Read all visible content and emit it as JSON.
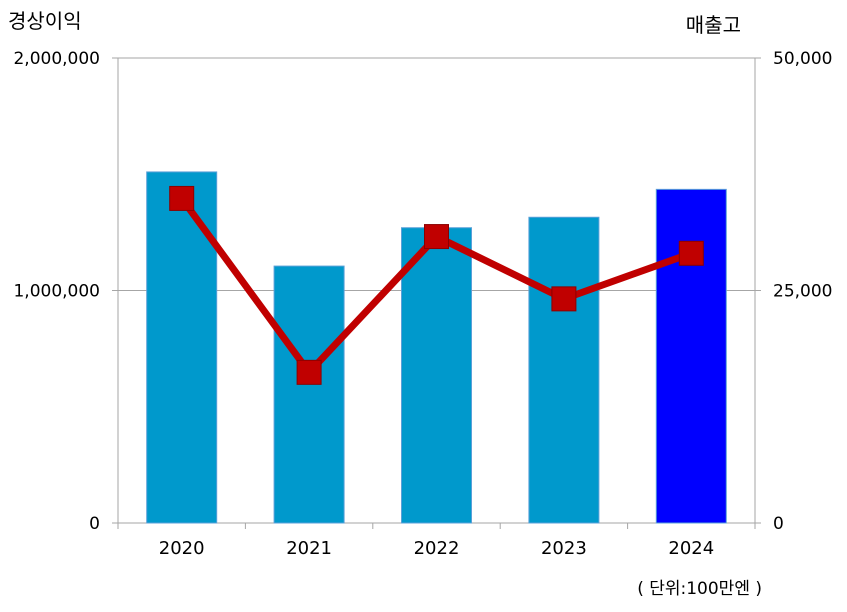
{
  "chart_data": {
    "type": "bar",
    "left_axis_title": "경상이익",
    "right_axis_title": "매출고",
    "unit_note": "( 단위:100만엔 )",
    "categories": [
      "2020",
      "2021",
      "2022",
      "2023",
      "2024"
    ],
    "left_ylim": [
      0,
      2000000
    ],
    "left_ticks": [
      "0",
      "1,000,000",
      "2,000,000"
    ],
    "right_ylim": [
      0,
      50000
    ],
    "right_ticks": [
      "0",
      "25,000",
      "50,000"
    ],
    "grid": true,
    "series": [
      {
        "type": "bar",
        "axis": "left",
        "values": [
          1510000,
          1105000,
          1270000,
          1315000,
          1435000
        ],
        "colors": [
          "#0099cc",
          "#0099cc",
          "#0099cc",
          "#0099cc",
          "#0000ff"
        ]
      },
      {
        "type": "line",
        "axis": "right",
        "values": [
          34900,
          16200,
          30800,
          24100,
          29000
        ],
        "color": "#c00000"
      }
    ]
  }
}
